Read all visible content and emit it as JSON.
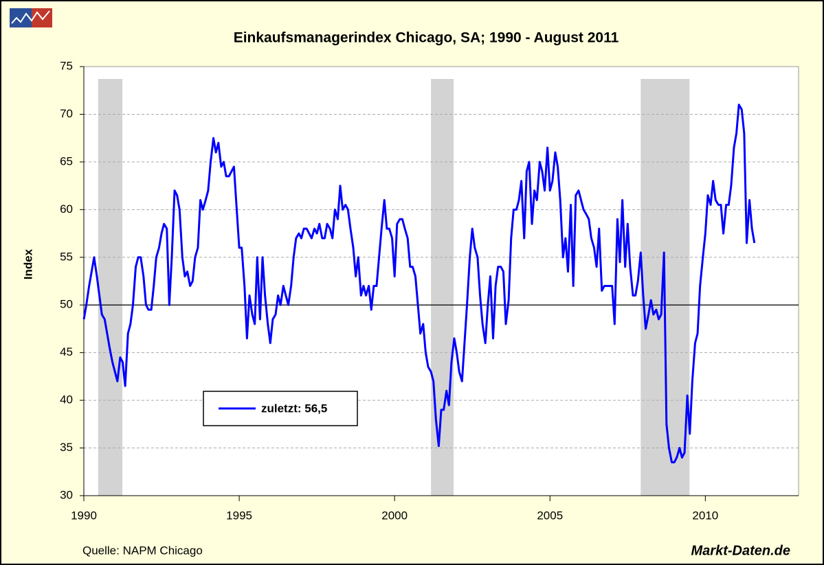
{
  "chart_data": {
    "type": "line",
    "title": "Einkaufsmanagerindex Chicago, SA; 1990 - August 2011",
    "ylabel": "Index",
    "source": "Quelle: NAPM Chicago",
    "brand": "Markt-Daten.de",
    "xlim": [
      1990,
      2013
    ],
    "xticks": [
      1990,
      1995,
      2000,
      2005,
      2010
    ],
    "ylim": [
      30,
      75
    ],
    "yticks": [
      30,
      35,
      40,
      45,
      50,
      55,
      60,
      65,
      70,
      75
    ],
    "grid": true,
    "reference_line": 50,
    "shaded_periods": [
      [
        1990.46,
        1991.24
      ],
      [
        2001.17,
        2001.9
      ],
      [
        2007.92,
        2009.49
      ]
    ],
    "x": [
      1990,
      1990.08,
      1990.17,
      1990.25,
      1990.33,
      1990.42,
      1990.5,
      1990.58,
      1990.67,
      1990.75,
      1990.83,
      1990.92,
      1991,
      1991.08,
      1991.17,
      1991.25,
      1991.33,
      1991.42,
      1991.5,
      1991.58,
      1991.67,
      1991.75,
      1991.83,
      1991.92,
      1992,
      1992.08,
      1992.17,
      1992.25,
      1992.33,
      1992.42,
      1992.5,
      1992.58,
      1992.67,
      1992.75,
      1992.83,
      1992.92,
      1993,
      1993.08,
      1993.17,
      1993.25,
      1993.33,
      1993.42,
      1993.5,
      1993.58,
      1993.67,
      1993.75,
      1993.83,
      1993.92,
      1994,
      1994.08,
      1994.17,
      1994.25,
      1994.33,
      1994.42,
      1994.5,
      1994.58,
      1994.67,
      1994.75,
      1994.83,
      1994.92,
      1995,
      1995.08,
      1995.17,
      1995.25,
      1995.33,
      1995.42,
      1995.5,
      1995.58,
      1995.67,
      1995.75,
      1995.83,
      1995.92,
      1996,
      1996.08,
      1996.17,
      1996.25,
      1996.33,
      1996.42,
      1996.5,
      1996.58,
      1996.67,
      1996.75,
      1996.83,
      1996.92,
      1997,
      1997.08,
      1997.17,
      1997.25,
      1997.33,
      1997.42,
      1997.5,
      1997.58,
      1997.67,
      1997.75,
      1997.83,
      1997.92,
      1998,
      1998.08,
      1998.17,
      1998.25,
      1998.33,
      1998.42,
      1998.5,
      1998.58,
      1998.67,
      1998.75,
      1998.83,
      1998.92,
      1999,
      1999.08,
      1999.17,
      1999.25,
      1999.33,
      1999.42,
      1999.5,
      1999.58,
      1999.67,
      1999.75,
      1999.83,
      1999.92,
      2000,
      2000.08,
      2000.17,
      2000.25,
      2000.33,
      2000.42,
      2000.5,
      2000.58,
      2000.67,
      2000.75,
      2000.83,
      2000.92,
      2001,
      2001.08,
      2001.17,
      2001.25,
      2001.33,
      2001.42,
      2001.5,
      2001.58,
      2001.67,
      2001.75,
      2001.83,
      2001.92,
      2002,
      2002.08,
      2002.17,
      2002.25,
      2002.33,
      2002.42,
      2002.5,
      2002.58,
      2002.67,
      2002.75,
      2002.83,
      2002.92,
      2003,
      2003.08,
      2003.17,
      2003.25,
      2003.33,
      2003.42,
      2003.5,
      2003.58,
      2003.67,
      2003.75,
      2003.83,
      2003.92,
      2004,
      2004.08,
      2004.17,
      2004.25,
      2004.33,
      2004.42,
      2004.5,
      2004.58,
      2004.67,
      2004.75,
      2004.83,
      2004.92,
      2005,
      2005.08,
      2005.17,
      2005.25,
      2005.33,
      2005.42,
      2005.5,
      2005.58,
      2005.67,
      2005.75,
      2005.83,
      2005.92,
      2006,
      2006.08,
      2006.17,
      2006.25,
      2006.33,
      2006.42,
      2006.5,
      2006.58,
      2006.67,
      2006.75,
      2006.83,
      2006.92,
      2007,
      2007.08,
      2007.17,
      2007.25,
      2007.33,
      2007.42,
      2007.5,
      2007.58,
      2007.67,
      2007.75,
      2007.83,
      2007.92,
      2008,
      2008.08,
      2008.17,
      2008.25,
      2008.33,
      2008.42,
      2008.5,
      2008.58,
      2008.67,
      2008.75,
      2008.83,
      2008.92,
      2009,
      2009.08,
      2009.17,
      2009.25,
      2009.33,
      2009.42,
      2009.5,
      2009.58,
      2009.67,
      2009.75,
      2009.83,
      2009.92,
      2010,
      2010.08,
      2010.17,
      2010.25,
      2010.33,
      2010.42,
      2010.5,
      2010.58,
      2010.67,
      2010.75,
      2010.83,
      2010.92,
      2011,
      2011.08,
      2011.17,
      2011.25,
      2011.33,
      2011.42,
      2011.5,
      2011.58
    ],
    "series": [
      {
        "name": "zuletzt: 56,5",
        "color": "#0000ff",
        "values": [
          48.5,
          50,
          52,
          53.5,
          55,
          53,
          51,
          49,
          48.5,
          47,
          45.5,
          44,
          43,
          42,
          44.5,
          44,
          41.5,
          47,
          48,
          50,
          54,
          55,
          55,
          53,
          50,
          49.5,
          49.5,
          52,
          55,
          56,
          57.5,
          58.5,
          58,
          50,
          55,
          62,
          61.5,
          60,
          55,
          53,
          53.5,
          52,
          52.5,
          55,
          56,
          61,
          60,
          61,
          62,
          65,
          67.5,
          66,
          67,
          64.5,
          65,
          63.5,
          63.5,
          64,
          64.5,
          60,
          56,
          56,
          52,
          46.5,
          51,
          49,
          48,
          55,
          48.5,
          55,
          51,
          48,
          46,
          48.5,
          49,
          51,
          50,
          52,
          51,
          50,
          52,
          55,
          57,
          57.5,
          57,
          58,
          58,
          57.5,
          57,
          58,
          57.5,
          58.5,
          57,
          57,
          58.5,
          58,
          57,
          60,
          59,
          62.5,
          60,
          60.5,
          60,
          58,
          56,
          53,
          55,
          51,
          52,
          51,
          52,
          49.5,
          52,
          52,
          55,
          58,
          61,
          58,
          58,
          57,
          53,
          58.5,
          59,
          59,
          58,
          57,
          54,
          54,
          53,
          50,
          47,
          48,
          45,
          43.5,
          43,
          42,
          38,
          35.2,
          39,
          39,
          41,
          39.5,
          44,
          46.5,
          45,
          43,
          42,
          46,
          50,
          55,
          58,
          56,
          55,
          51,
          48,
          46,
          50,
          53,
          46.5,
          52,
          54,
          54,
          53.5,
          48,
          50.5,
          57,
          60,
          60,
          61,
          63,
          57,
          64,
          65,
          58.5,
          62,
          61,
          65,
          64,
          62,
          66.5,
          62,
          63,
          66,
          64.5,
          61,
          55,
          57,
          53.5,
          60.5,
          52,
          61.5,
          62,
          61,
          60,
          59.5,
          59,
          57,
          56,
          54,
          58,
          51.5,
          52,
          52,
          52,
          52,
          48,
          59,
          54.5,
          61,
          54,
          58.5,
          54,
          51,
          51,
          52.5,
          55.5,
          51,
          47.5,
          49,
          50.5,
          49,
          49.5,
          48.5,
          49,
          55.5,
          37.5,
          35,
          33.5,
          33.5,
          34,
          35,
          34,
          34.5,
          40.5,
          36.5,
          42,
          46,
          47,
          52,
          55,
          57.5,
          61.5,
          60.5,
          63,
          61,
          60.5,
          60.5,
          57.5,
          60.5,
          60.5,
          62.5,
          66.5,
          68,
          71,
          70.5,
          68,
          56.5,
          61,
          58,
          56.5
        ]
      }
    ]
  }
}
